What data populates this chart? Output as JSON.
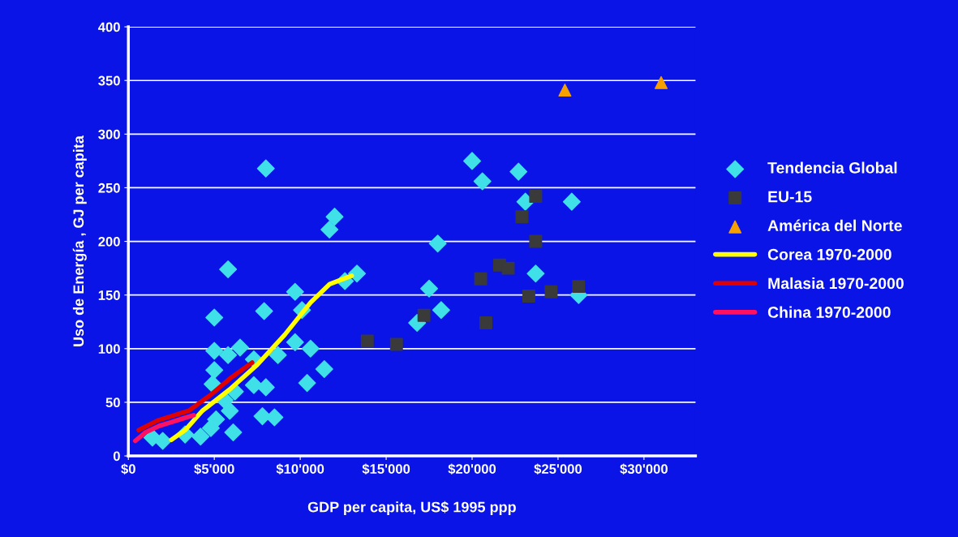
{
  "chart_data": {
    "type": "scatter",
    "xlabel": "GDP per capita, US$ 1995 ppp",
    "ylabel": "Uso de Energía , GJ per capita",
    "xlim": [
      0,
      33000
    ],
    "ylim": [
      0,
      400
    ],
    "xticks": [
      {
        "value": 0,
        "label": "$0"
      },
      {
        "value": 5000,
        "label": "$5'000"
      },
      {
        "value": 10000,
        "label": "$10'000"
      },
      {
        "value": 15000,
        "label": "$15'000"
      },
      {
        "value": 20000,
        "label": "$20'000"
      },
      {
        "value": 25000,
        "label": "$25'000"
      },
      {
        "value": 30000,
        "label": "$30'000"
      }
    ],
    "yticks": [
      0,
      50,
      100,
      150,
      200,
      250,
      300,
      350,
      400
    ],
    "grid": "y",
    "legend": "right",
    "series": [
      {
        "name": "Tendencia Global",
        "marker": "diamond",
        "color": "#40e0e8",
        "x": [
          8000,
          12000,
          11700,
          5800,
          13300,
          12600,
          9700,
          5000,
          7900,
          10100,
          5000,
          5800,
          6500,
          9700,
          10600,
          8700,
          7300,
          11400,
          5000,
          4900,
          7300,
          8000,
          10400,
          7800,
          8500,
          6200,
          5900,
          6100,
          4200,
          3300,
          2000,
          1400,
          5100,
          5600,
          4800,
          20000,
          20600,
          22700,
          23100,
          25800,
          18000,
          23700,
          17500,
          18200,
          16800,
          26200
        ],
        "values": [
          268,
          223,
          211,
          174,
          170,
          163,
          153,
          129,
          135,
          136,
          98,
          94,
          101,
          106,
          100,
          94,
          90,
          81,
          80,
          67,
          66,
          64,
          68,
          37,
          36,
          60,
          42,
          22,
          18,
          20,
          14,
          17,
          34,
          52,
          26,
          275,
          256,
          265,
          237,
          237,
          198,
          170,
          156,
          136,
          124,
          150
        ]
      },
      {
        "name": "EU-15",
        "marker": "square",
        "color": "#3a3a3a",
        "x": [
          23700,
          22900,
          23700,
          21600,
          22100,
          20500,
          23300,
          24600,
          26200,
          17200,
          20800,
          15600,
          13900
        ],
        "values": [
          242,
          223,
          200,
          178,
          175,
          165,
          149,
          153,
          158,
          131,
          124,
          104,
          107
        ]
      },
      {
        "name": "América del Norte",
        "marker": "triangle",
        "color": "#f5a000",
        "x": [
          25400,
          31000
        ],
        "values": [
          341,
          348
        ]
      },
      {
        "name": "Corea 1970-2000",
        "type": "line",
        "marker": "none",
        "color": "#ffff00",
        "x": [
          2500,
          3300,
          4300,
          5900,
          7500,
          9100,
          10600,
          11700,
          13000
        ],
        "values": [
          15,
          24,
          42,
          62,
          85,
          113,
          143,
          160,
          168
        ]
      },
      {
        "name": "Malasia 1970-2000",
        "type": "line",
        "marker": "none",
        "color": "#e00000",
        "x": [
          600,
          1700,
          2900,
          3500,
          4800,
          5900,
          7200
        ],
        "values": [
          24,
          33,
          39,
          42,
          57,
          72,
          87
        ]
      },
      {
        "name": "China 1970-2000",
        "type": "line",
        "marker": "none",
        "color": "#ff1060",
        "x": [
          400,
          1000,
          1800,
          2400,
          3200,
          3800
        ],
        "values": [
          14,
          22,
          28,
          31,
          35,
          38
        ]
      }
    ]
  }
}
